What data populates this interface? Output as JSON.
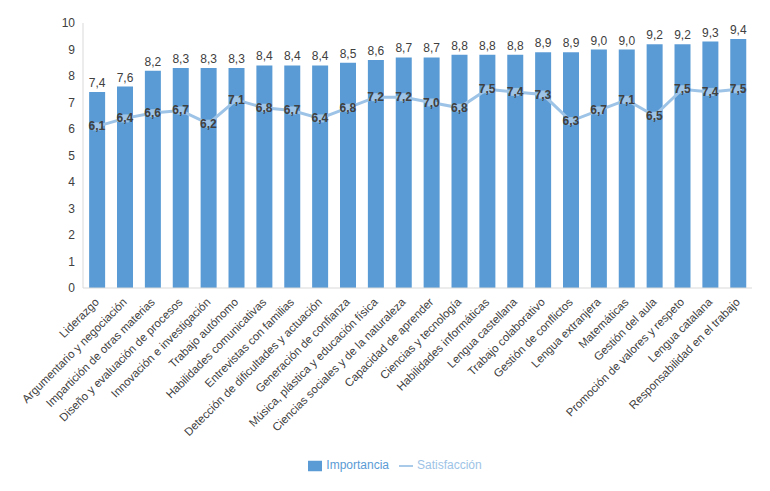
{
  "chart_data": {
    "type": "bar",
    "categories": [
      "Liderazgo",
      "Argumentario y negociación",
      "Impartición de otras materias",
      "Diseño y evaluación de procesos",
      "Innovación e investigación",
      "Trabajo autónomo",
      "Habilidades comunicativas",
      "Entrevistas con familias",
      "Detección de dificultades y actuación",
      "Generación de confianza",
      "Música, plástica y educación física",
      "Ciencias sociales y de la naturaleza",
      "Capacidad de aprender",
      "Ciencias y tecnología",
      "Habilidades informáticas",
      "Lengua castellana",
      "Trabajo colaborativo",
      "Gestión de conflictos",
      "Lengua extranjera",
      "Matemáticas",
      "Gestión del aula",
      "Promoción de valores y respeto",
      "Lengua catalana",
      "Responsabilidad en el trabajo"
    ],
    "series": [
      {
        "name": "Importancia",
        "type": "bar",
        "color": "#5b9bd5",
        "values": [
          7.4,
          7.6,
          8.2,
          8.3,
          8.3,
          8.3,
          8.4,
          8.4,
          8.4,
          8.5,
          8.6,
          8.7,
          8.7,
          8.8,
          8.8,
          8.8,
          8.9,
          8.9,
          9.0,
          9.0,
          9.2,
          9.2,
          9.3,
          9.4
        ],
        "value_labels": [
          "7,4",
          "7,6",
          "8,2",
          "8,3",
          "8,3",
          "8,3",
          "8,4",
          "8,4",
          "8,4",
          "8,5",
          "8,6",
          "8,7",
          "8,7",
          "8,8",
          "8,8",
          "8,8",
          "8,9",
          "8,9",
          "9,0",
          "9,0",
          "9,2",
          "9,2",
          "9,3",
          "9,4"
        ]
      },
      {
        "name": "Satisfacción",
        "type": "line",
        "color": "#9dc3e6",
        "marker": "square",
        "values": [
          6.1,
          6.4,
          6.6,
          6.7,
          6.2,
          7.1,
          6.8,
          6.7,
          6.4,
          6.8,
          7.2,
          7.2,
          7.0,
          6.8,
          7.5,
          7.4,
          7.3,
          6.3,
          6.7,
          7.1,
          6.5,
          7.5,
          7.4,
          7.5
        ],
        "value_labels": [
          "6,1",
          "6,4",
          "6,6",
          "6,7",
          "6,2",
          "7,1",
          "6,8",
          "6,7",
          "6,4",
          "6,8",
          "7,2",
          "7,2",
          "7,0",
          "6,8",
          "7,5",
          "7,4",
          "7,3",
          "6,3",
          "6,7",
          "7,1",
          "6,5",
          "7,5",
          "7,4",
          "7,5"
        ]
      }
    ],
    "ylim": [
      0,
      10
    ],
    "yticks": [
      0,
      1,
      2,
      3,
      4,
      5,
      6,
      7,
      8,
      9,
      10
    ],
    "grid": false,
    "legend": "bottom",
    "data_labels": true
  }
}
